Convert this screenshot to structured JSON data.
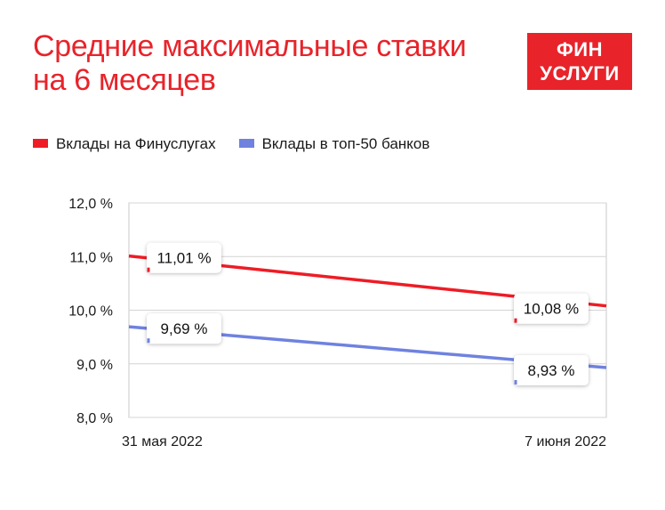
{
  "title": {
    "line1": "Средние максимальные ставки",
    "line2": "на 6 месяцев"
  },
  "logo": {
    "line1": "ФИН",
    "line2": "УСЛУГИ",
    "color": "#e8232a"
  },
  "chart_data": {
    "type": "line",
    "categories": [
      "31 мая 2022",
      "7 июня 2022"
    ],
    "ylim": [
      8.0,
      12.0
    ],
    "yticks": [
      {
        "value": 12.0,
        "label": "12,0 %"
      },
      {
        "value": 11.0,
        "label": "11,0 %"
      },
      {
        "value": 10.0,
        "label": "10,0 %"
      },
      {
        "value": 9.0,
        "label": "9,0 %"
      },
      {
        "value": 8.0,
        "label": "8,0 %"
      }
    ],
    "grid": true,
    "legend_position": "top-left",
    "series": [
      {
        "name": "Вклады на Финуслугах",
        "color": "#ee1c25",
        "values": [
          11.01,
          10.08
        ],
        "labels": [
          "11,01 %",
          "10,08 %"
        ]
      },
      {
        "name": "Вклады в топ-50 банков",
        "color": "#6f82e0",
        "values": [
          9.69,
          8.93
        ],
        "labels": [
          "9,69 %",
          "8,93 %"
        ]
      }
    ]
  }
}
